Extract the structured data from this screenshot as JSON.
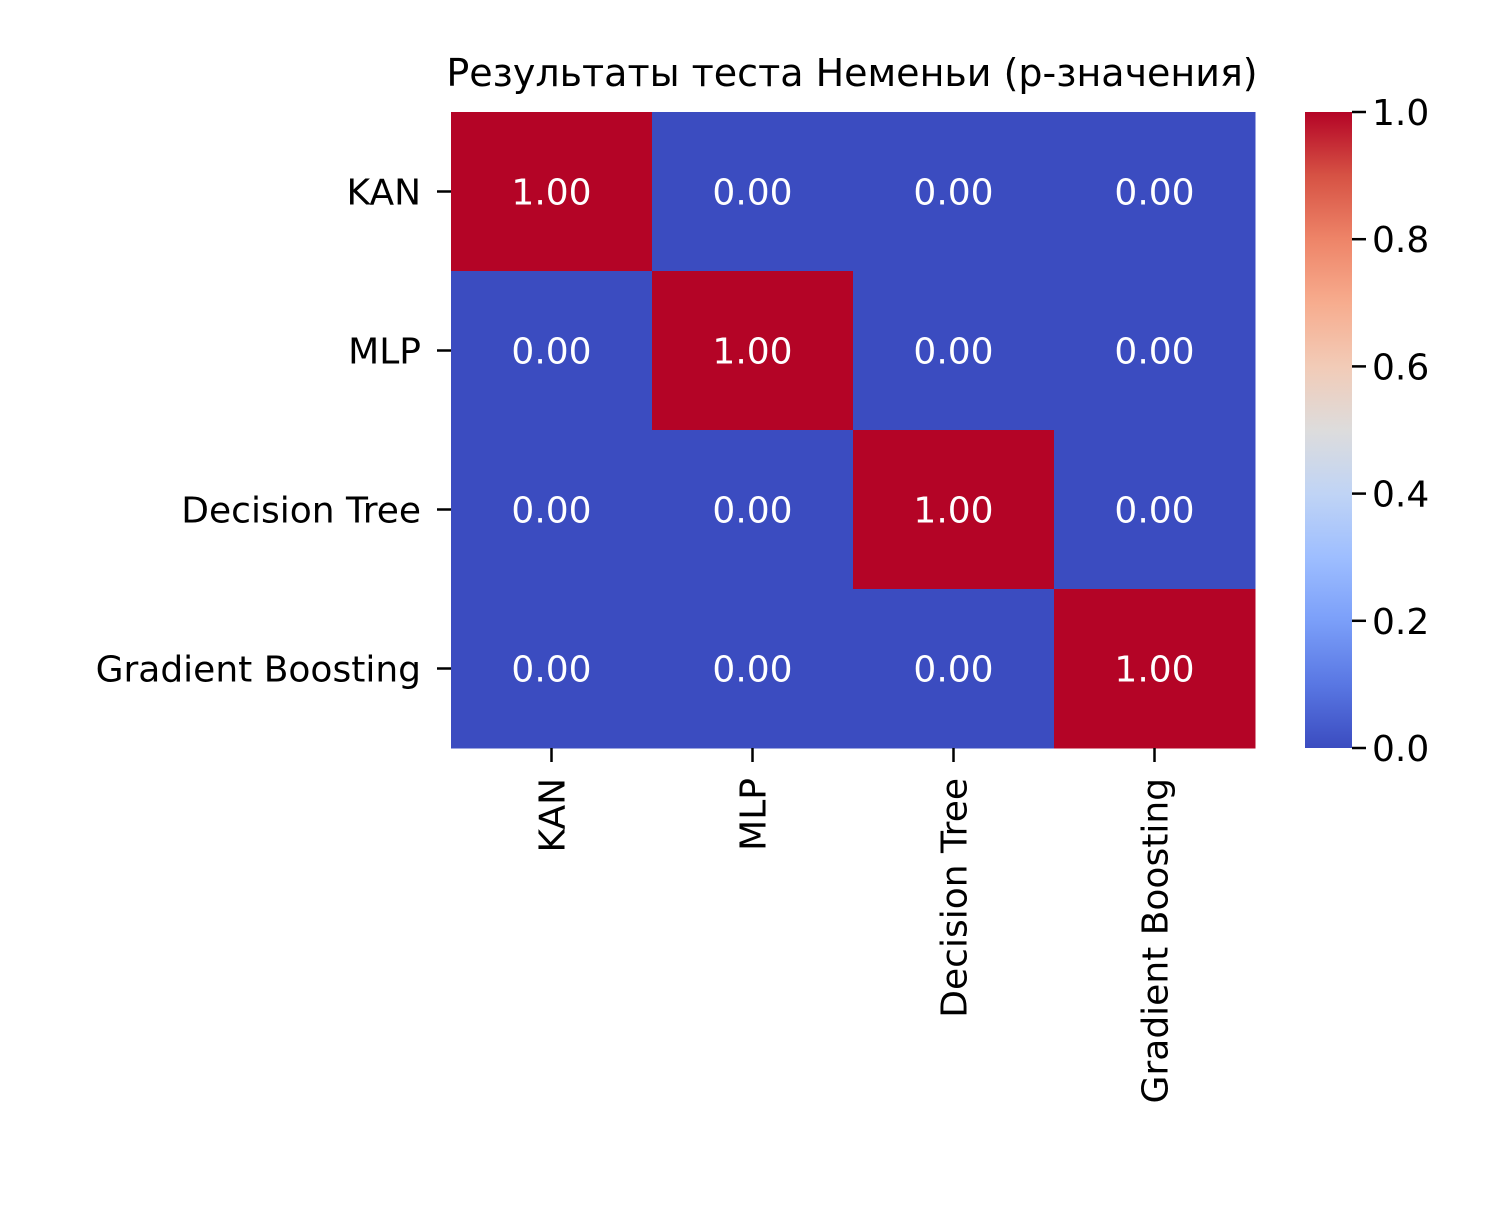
{
  "chart_data": {
    "type": "heatmap",
    "title": "Результаты теста Неменьи (p-значения)",
    "xlabel": "",
    "ylabel": "",
    "rows": [
      "KAN",
      "MLP",
      "Decision Tree",
      "Gradient Boosting"
    ],
    "columns": [
      "KAN",
      "MLP",
      "Decision Tree",
      "Gradient Boosting"
    ],
    "values": [
      [
        1.0,
        0.0,
        0.0,
        0.0
      ],
      [
        0.0,
        1.0,
        0.0,
        0.0
      ],
      [
        0.0,
        0.0,
        1.0,
        0.0
      ],
      [
        0.0,
        0.0,
        0.0,
        1.0
      ]
    ],
    "value_format": "0.00",
    "colormap": "coolwarm",
    "colorbar": {
      "range": [
        0.0,
        1.0
      ],
      "ticks": [
        "0.0",
        "0.2",
        "0.4",
        "0.6",
        "0.8",
        "1.0"
      ]
    },
    "colors": {
      "low": "#3b4cc0",
      "high": "#b40426",
      "annotation_text": "#ffffff"
    }
  }
}
